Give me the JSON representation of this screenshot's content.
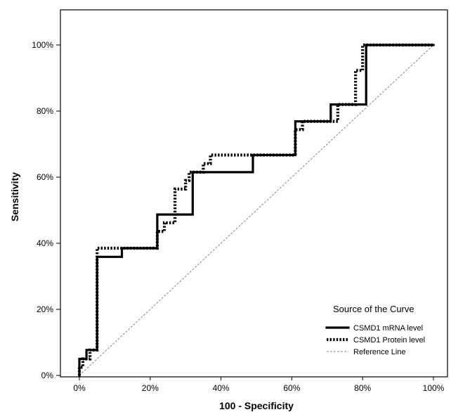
{
  "chart_data": {
    "type": "line",
    "title": "",
    "xlabel": "100 - Specificity",
    "ylabel": "Sensitivity",
    "xlim": [
      0,
      100
    ],
    "ylim": [
      0,
      100
    ],
    "x_ticks": [
      "0%",
      "20%",
      "40%",
      "60%",
      "80%",
      "100%"
    ],
    "y_ticks": [
      "0%",
      "20%",
      "40%",
      "60%",
      "80%",
      "100%"
    ],
    "grid": false,
    "legend": {
      "title": "Source of the Curve",
      "placement": "bottom-right"
    },
    "series": [
      {
        "name": "CSMD1 mRNA level",
        "style": "solid",
        "color": "#000000",
        "points": [
          [
            0,
            0
          ],
          [
            0,
            5
          ],
          [
            2,
            5
          ],
          [
            2,
            7.7
          ],
          [
            5,
            7.7
          ],
          [
            5,
            35.9
          ],
          [
            12,
            35.9
          ],
          [
            12,
            38.5
          ],
          [
            22,
            38.5
          ],
          [
            22,
            48.7
          ],
          [
            32,
            48.7
          ],
          [
            32,
            61.5
          ],
          [
            49,
            61.5
          ],
          [
            49,
            66.7
          ],
          [
            61,
            66.7
          ],
          [
            61,
            76.9
          ],
          [
            71,
            76.9
          ],
          [
            71,
            82
          ],
          [
            81,
            82
          ],
          [
            81,
            100
          ],
          [
            100,
            100
          ]
        ]
      },
      {
        "name": "CSMD1 Protein level",
        "style": "dotted",
        "color": "#000000",
        "points": [
          [
            0,
            0
          ],
          [
            0,
            2.5
          ],
          [
            1,
            2.5
          ],
          [
            1,
            5
          ],
          [
            3,
            5
          ],
          [
            3,
            7.7
          ],
          [
            5,
            7.7
          ],
          [
            5,
            38.5
          ],
          [
            22,
            38.5
          ],
          [
            22,
            43.6
          ],
          [
            24,
            43.6
          ],
          [
            24,
            46.2
          ],
          [
            27,
            46.2
          ],
          [
            27,
            56.4
          ],
          [
            30,
            56.4
          ],
          [
            30,
            59
          ],
          [
            31,
            59
          ],
          [
            31,
            61.5
          ],
          [
            35,
            61.5
          ],
          [
            35,
            64.1
          ],
          [
            37,
            64.1
          ],
          [
            37,
            66.7
          ],
          [
            61,
            66.7
          ],
          [
            61,
            74.4
          ],
          [
            63,
            74.4
          ],
          [
            63,
            76.9
          ],
          [
            73,
            76.9
          ],
          [
            73,
            82
          ],
          [
            78,
            82
          ],
          [
            78,
            92.3
          ],
          [
            80,
            92.3
          ],
          [
            80,
            100
          ],
          [
            100,
            100
          ]
        ]
      },
      {
        "name": "Reference Line",
        "style": "dashed",
        "color": "#888888",
        "points": [
          [
            0,
            0
          ],
          [
            100,
            100
          ]
        ]
      }
    ]
  }
}
